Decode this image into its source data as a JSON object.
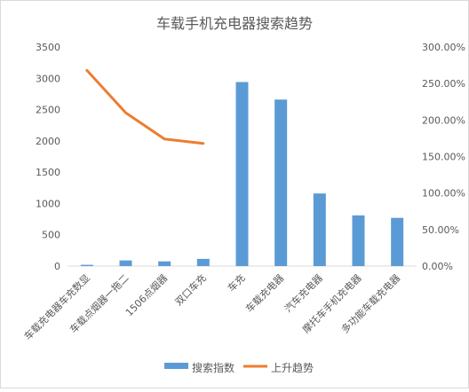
{
  "chart_data": {
    "type": "bar",
    "title": "车载手机充电器搜索趋势",
    "categories": [
      "车载充电器车充数显",
      "车载点烟器一拖二",
      "1506点烟器",
      "双口车充",
      "车充",
      "车载充电器",
      "汽车充电器",
      "摩托车手机充电器",
      "多功能车载充电器"
    ],
    "series": [
      {
        "name": "搜索指数",
        "type": "bar",
        "axis": "left",
        "color": "#5b9bd5",
        "values": [
          20,
          90,
          75,
          115,
          2940,
          2660,
          1160,
          810,
          770
        ]
      },
      {
        "name": "上升趋势",
        "type": "line",
        "axis": "right",
        "color": "#ed7d31",
        "values": [
          2.68,
          2.1,
          1.74,
          1.68,
          null,
          null,
          null,
          null,
          null
        ]
      }
    ],
    "y_left": {
      "min": 0,
      "max": 3500,
      "ticks": [
        "0",
        "500",
        "1000",
        "1500",
        "2000",
        "2500",
        "3000",
        "3500"
      ]
    },
    "y_right": {
      "min": 0,
      "max": 3.0,
      "ticks": [
        "0.00%",
        "50.00%",
        "100.00%",
        "150.00%",
        "200.00%",
        "250.00%",
        "300.00%"
      ]
    },
    "grid": false,
    "legend": "bottom"
  }
}
